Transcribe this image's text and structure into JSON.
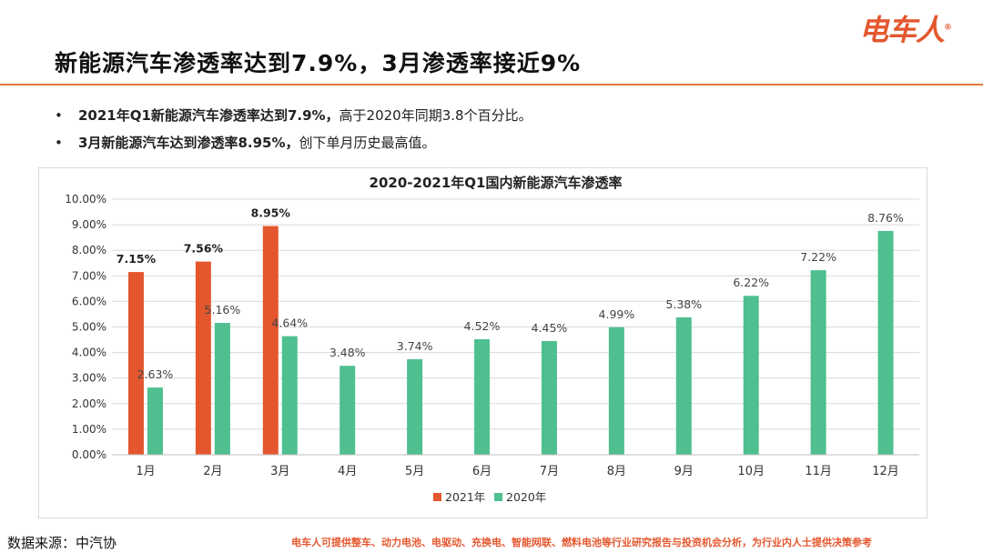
{
  "brand": {
    "logo_text": "电车人",
    "registered_mark": "®",
    "color": "#e4572e"
  },
  "header": {
    "title": "新能源汽车渗透率达到7.9%，3月渗透率接近9%",
    "rule_color": "#e07b39"
  },
  "bullets": [
    {
      "marker": "•",
      "bold": "2021年Q1新能源汽车渗透率达到7.9%，",
      "text": "高于2020年同期3.8个百分比。"
    },
    {
      "marker": "•",
      "bold": "3月新能源汽车达到渗透率8.95%，",
      "text": "创下单月历史最高值。"
    }
  ],
  "chart_data": {
    "type": "bar",
    "title": "2020-2021年Q1国内新能源汽车渗透率",
    "categories": [
      "1月",
      "2月",
      "3月",
      "4月",
      "5月",
      "6月",
      "7月",
      "8月",
      "9月",
      "10月",
      "11月",
      "12月"
    ],
    "series": [
      {
        "name": "2021年",
        "color": "#e4572e",
        "values": [
          7.15,
          7.56,
          8.95,
          null,
          null,
          null,
          null,
          null,
          null,
          null,
          null,
          null
        ],
        "labels": [
          "7.15%",
          "7.56%",
          "8.95%"
        ],
        "label_bold": true
      },
      {
        "name": "2020年",
        "color": "#4fbf8f",
        "values": [
          2.63,
          5.16,
          4.64,
          3.48,
          3.74,
          4.52,
          4.45,
          4.99,
          5.38,
          6.22,
          7.22,
          8.76
        ],
        "labels": [
          "2.63%",
          "5.16%",
          "4.64%",
          "3.48%",
          "3.74%",
          "4.52%",
          "4.45%",
          "4.99%",
          "5.38%",
          "6.22%",
          "7.22%",
          "8.76%"
        ],
        "label_bold": false
      }
    ],
    "ylim": [
      0,
      10
    ],
    "yticks": [
      "0.00%",
      "1.00%",
      "2.00%",
      "3.00%",
      "4.00%",
      "5.00%",
      "6.00%",
      "7.00%",
      "8.00%",
      "9.00%",
      "10.00%"
    ],
    "grid": true,
    "legend_position": "bottom"
  },
  "footer": {
    "source": "数据来源：中汽协",
    "note": "电车人可提供整车、动力电池、电驱动、充换电、智能网联、燃料电池等行业研究报告与投资机会分析，为行业内人士提供决策参考",
    "note_color": "#e4572e"
  }
}
